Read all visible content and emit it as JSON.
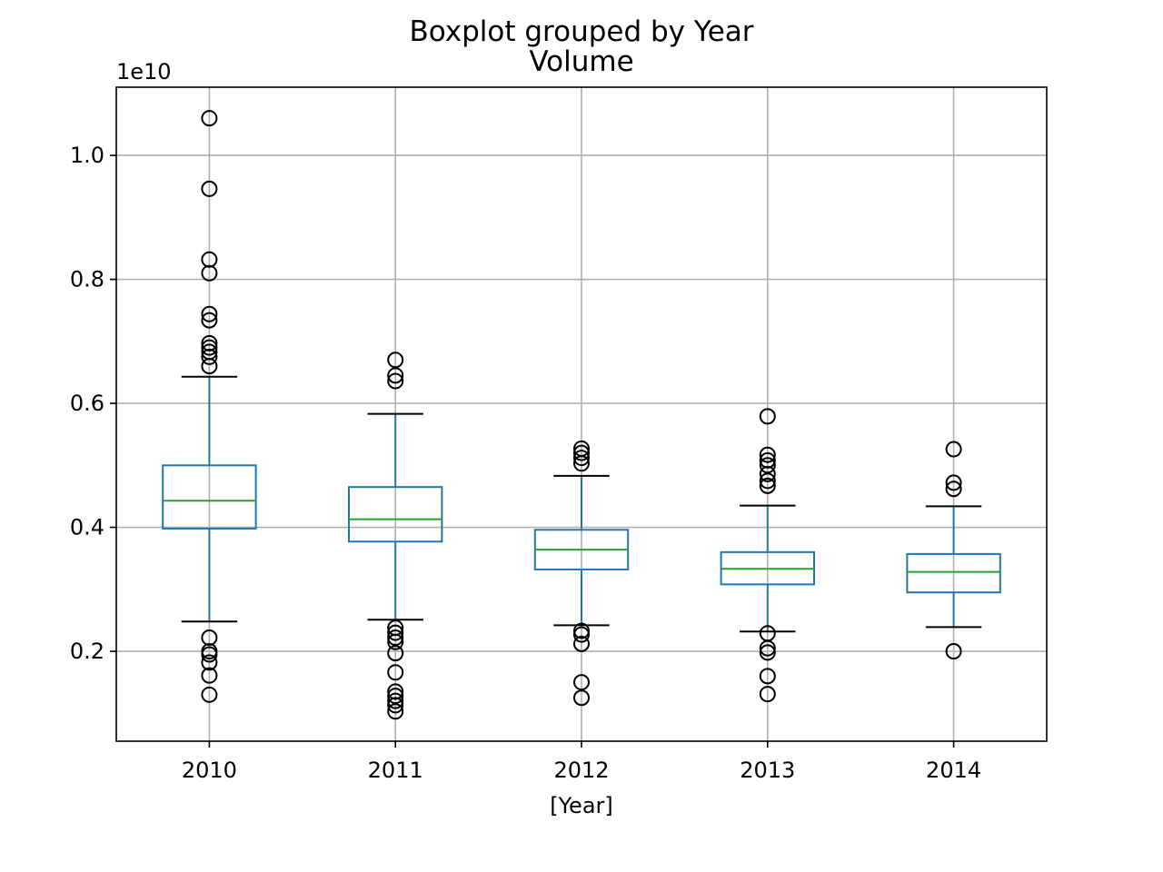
{
  "chart_data": {
    "type": "boxplot",
    "suptitle": "Boxplot grouped by Year",
    "title": "Volume",
    "xlabel": "[Year]",
    "ylabel": "",
    "y_offset_label": "1e10",
    "y_scale": 10000000000,
    "ylim": [
      0.055,
      1.11
    ],
    "yticks": [
      0.2,
      0.4,
      0.6,
      0.8,
      1.0
    ],
    "ytick_labels": [
      "0.2",
      "0.4",
      "0.6",
      "0.8",
      "1.0"
    ],
    "grid": true,
    "categories": [
      "2010",
      "2011",
      "2012",
      "2013",
      "2014"
    ],
    "boxes": [
      {
        "category": "2010",
        "whisker_low": 0.248,
        "q1": 0.398,
        "median": 0.443,
        "q3": 0.5,
        "whisker_high": 0.643,
        "fliers": [
          1.06,
          0.946,
          0.832,
          0.81,
          0.744,
          0.734,
          0.697,
          0.69,
          0.683,
          0.675,
          0.66,
          0.222,
          0.2,
          0.195,
          0.182,
          0.161,
          0.13
        ]
      },
      {
        "category": "2011",
        "whisker_low": 0.251,
        "q1": 0.377,
        "median": 0.413,
        "q3": 0.465,
        "whisker_high": 0.583,
        "fliers": [
          0.67,
          0.645,
          0.636,
          0.238,
          0.23,
          0.222,
          0.215,
          0.197,
          0.166,
          0.135,
          0.128,
          0.12,
          0.113,
          0.103
        ]
      },
      {
        "category": "2012",
        "whisker_low": 0.242,
        "q1": 0.332,
        "median": 0.364,
        "q3": 0.396,
        "whisker_high": 0.483,
        "fliers": [
          0.527,
          0.52,
          0.512,
          0.503,
          0.233,
          0.227,
          0.212,
          0.15,
          0.125
        ]
      },
      {
        "category": "2013",
        "whisker_low": 0.232,
        "q1": 0.308,
        "median": 0.333,
        "q3": 0.36,
        "whisker_high": 0.435,
        "fliers": [
          0.579,
          0.517,
          0.508,
          0.5,
          0.486,
          0.475,
          0.467,
          0.229,
          0.205,
          0.198,
          0.16,
          0.131
        ]
      },
      {
        "category": "2014",
        "whisker_low": 0.239,
        "q1": 0.295,
        "median": 0.328,
        "q3": 0.357,
        "whisker_high": 0.434,
        "fliers": [
          0.526,
          0.472,
          0.462,
          0.2
        ]
      }
    ],
    "colors": {
      "box": "#1f77b4",
      "whisker": "#1f77b4",
      "cap": "#000000",
      "median": "#2ca02c",
      "flier": "#000000",
      "grid": "#b0b0b0"
    }
  }
}
